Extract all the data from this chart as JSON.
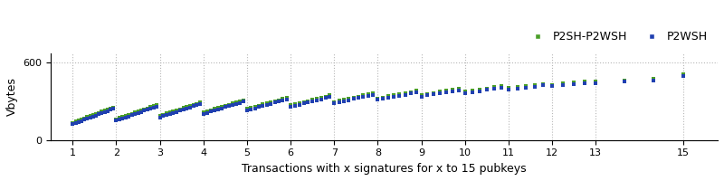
{
  "xlabel": "Transactions with x signatures for x to 15 pubkeys",
  "ylabel": "Vbytes",
  "ylim": [
    0,
    670
  ],
  "yticks": [
    0,
    600
  ],
  "legend_labels": [
    "P2SH-P2WSH",
    "P2WSH"
  ],
  "p2sh_p2wsh_color": "#4a9e28",
  "p2wsh_color": "#2040b0",
  "grid_color": "#b0b0b0",
  "xtick_positions": [
    1,
    2,
    3,
    4,
    5,
    6,
    7,
    8,
    9,
    10,
    11,
    12,
    13,
    15
  ],
  "xtick_labels": [
    "1",
    "2",
    "3",
    "4",
    "5",
    "6",
    "7",
    "8",
    "9",
    "10",
    "11",
    "12",
    "13",
    "15"
  ]
}
